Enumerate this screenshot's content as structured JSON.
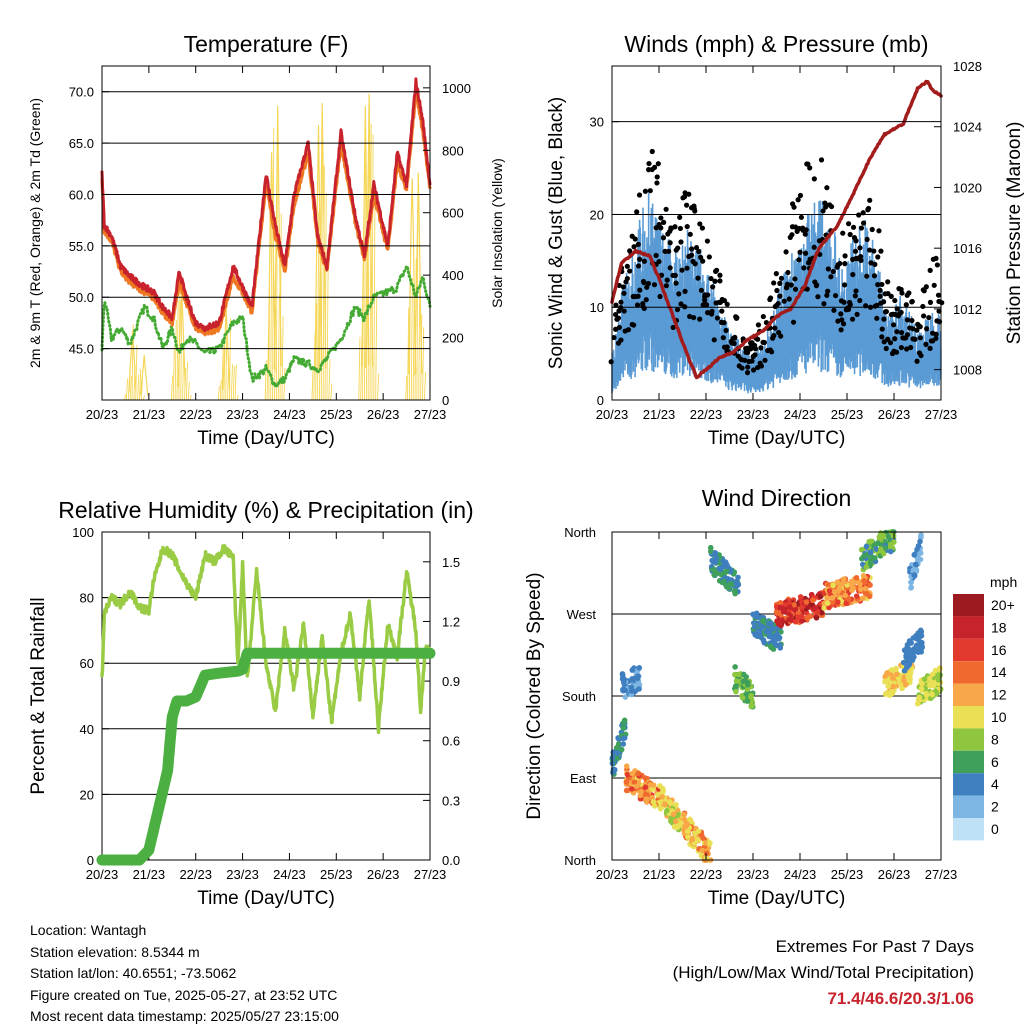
{
  "time_ticks": [
    "20/23",
    "21/23",
    "22/23",
    "23/23",
    "24/23",
    "25/23",
    "26/23",
    "27/23"
  ],
  "xlabel": "Time (Day/UTC)",
  "colors": {
    "temp_9m": "#c8232c",
    "temp_2m": "#ee7722",
    "dewpoint": "#44aa33",
    "solar": "#f5d656",
    "wind": "#5a9bd5",
    "gust": "#000000",
    "pressure": "#a31c1c",
    "rh": "#99cc44",
    "precip": "#4bb041",
    "extremes": "#c8232c"
  },
  "chart_data": [
    {
      "type": "line",
      "title": "Temperature (F)",
      "xlabel": "Time (Day/UTC)",
      "ylabel": "2m & 9m T (Red, Orange) & 2m Td (Green)",
      "y2label": "Solar Insolation (Yellow)",
      "ylim": [
        40.0,
        72.5
      ],
      "y2lim": [
        0,
        1070
      ],
      "yticks": [
        "45.0",
        "50.0",
        "55.0",
        "60.0",
        "65.0",
        "70.0"
      ],
      "y2ticks": [
        "0",
        "200",
        "400",
        "600",
        "800",
        "1000"
      ],
      "grid": true,
      "x_days": [
        0,
        0.05,
        0.2,
        0.4,
        0.6,
        0.9,
        1.1,
        1.3,
        1.5,
        1.65,
        1.8,
        2.0,
        2.2,
        2.5,
        2.8,
        3.0,
        3.2,
        3.5,
        3.7,
        3.9,
        4.1,
        4.4,
        4.6,
        4.8,
        5.1,
        5.4,
        5.6,
        5.8,
        6.1,
        6.3,
        6.5,
        6.7,
        6.85,
        7.0
      ],
      "series": [
        {
          "key": "t9m",
          "values": [
            62,
            57,
            56,
            53,
            52,
            51,
            50.5,
            49,
            48,
            52.5,
            50,
            47.5,
            47,
            47.5,
            53,
            51,
            49,
            62,
            57,
            53,
            60,
            65,
            56,
            53,
            66,
            58,
            54,
            61,
            55,
            64,
            61,
            71,
            67,
            61
          ]
        },
        {
          "key": "t2m",
          "values": [
            61.5,
            56.5,
            55.5,
            52.5,
            51.5,
            50.5,
            50,
            48.5,
            47.5,
            51.5,
            49.5,
            47,
            46.5,
            47,
            52,
            50.5,
            48.5,
            61,
            56,
            52.5,
            59,
            64,
            55.5,
            52.5,
            65,
            57.5,
            53.5,
            60,
            54.5,
            63,
            60.5,
            70,
            66,
            60.5
          ]
        },
        {
          "key": "td",
          "values": [
            45,
            50,
            46,
            47,
            45.5,
            49,
            48,
            45,
            47,
            44.5,
            46,
            45.5,
            44.5,
            45,
            47.5,
            48,
            42,
            43,
            41.5,
            42,
            44,
            43.5,
            43,
            44,
            46,
            49,
            48,
            50,
            50.5,
            51,
            53,
            50,
            52,
            49
          ]
        },
        {
          "key": "solar",
          "peaks": [
            {
              "at": 0.65,
              "v": 250
            },
            {
              "at": 0.9,
              "v": 150
            },
            {
              "at": 1.7,
              "v": 400
            },
            {
              "at": 2.65,
              "v": 300
            },
            {
              "at": 3.62,
              "v": 880
            },
            {
              "at": 3.75,
              "v": 950
            },
            {
              "at": 4.62,
              "v": 950
            },
            {
              "at": 4.7,
              "v": 1000
            },
            {
              "at": 5.62,
              "v": 1030
            },
            {
              "at": 5.7,
              "v": 1000
            },
            {
              "at": 6.62,
              "v": 780
            },
            {
              "at": 6.75,
              "v": 750
            }
          ]
        }
      ]
    },
    {
      "type": "line",
      "title": "Winds (mph) & Pressure (mb)",
      "xlabel": "Time (Day/UTC)",
      "ylabel": "Sonic Wind & Gust (Blue, Black)",
      "y2label": "Station Pressure (Maroon)",
      "ylim": [
        0,
        36
      ],
      "y2lim": [
        1006,
        1028
      ],
      "yticks": [
        "0",
        "10",
        "20",
        "30"
      ],
      "y2ticks": [
        "1008",
        "1012",
        "1016",
        "1020",
        "1024",
        "1028"
      ],
      "grid": true,
      "wind_env_x": [
        0,
        0.3,
        0.5,
        0.8,
        1.0,
        1.3,
        1.6,
        2.0,
        2.3,
        2.5,
        2.8,
        3.0,
        3.4,
        3.7,
        4.0,
        4.3,
        4.6,
        4.9,
        5.1,
        5.4,
        5.6,
        5.9,
        6.2,
        6.5,
        6.7,
        6.9,
        7.0
      ],
      "wind_env": [
        3,
        10,
        12,
        16,
        13,
        11,
        13,
        10,
        7,
        5,
        4,
        3,
        6,
        10,
        12,
        15,
        14,
        10,
        12,
        13,
        11,
        6,
        8,
        5,
        6,
        7,
        6
      ],
      "gust_env": [
        6,
        16,
        18,
        24,
        22,
        17,
        20,
        17,
        12,
        9,
        7,
        6,
        10,
        17,
        20,
        25,
        22,
        16,
        18,
        20,
        18,
        10,
        12,
        9,
        11,
        14,
        12
      ],
      "pressure_x": [
        0,
        0.2,
        0.5,
        0.8,
        1.0,
        1.3,
        1.6,
        1.8,
        2.0,
        2.3,
        2.6,
        2.9,
        3.2,
        3.5,
        3.8,
        4.1,
        4.4,
        4.8,
        5.2,
        5.5,
        5.8,
        6.2,
        6.5,
        6.7,
        6.8,
        7.0
      ],
      "pressure": [
        1012.5,
        1015,
        1015.8,
        1015.5,
        1014,
        1011.5,
        1009,
        1007.5,
        1008,
        1008.8,
        1009.2,
        1010,
        1010.5,
        1011.5,
        1012,
        1013.5,
        1016,
        1017.5,
        1020,
        1022,
        1023.5,
        1024.2,
        1026.5,
        1027,
        1026.5,
        1026
      ]
    },
    {
      "type": "line",
      "title": "Relative Humidity (%) & Precipitation (in)",
      "xlabel": "Time (Day/UTC)",
      "ylabel": "Percent & Total Rainfall",
      "ylim": [
        0,
        100
      ],
      "y2lim": [
        0,
        1.65
      ],
      "yticks": [
        "0",
        "20",
        "40",
        "60",
        "80",
        "100"
      ],
      "y2ticks": [
        "0.0",
        "0.3",
        "0.6",
        "0.9",
        "1.2",
        "1.5"
      ],
      "grid": true,
      "rh_x": [
        0,
        0.05,
        0.2,
        0.4,
        0.6,
        0.8,
        1.0,
        1.1,
        1.3,
        1.5,
        1.7,
        1.9,
        2.0,
        2.2,
        2.4,
        2.6,
        2.8,
        2.9,
        3.0,
        3.1,
        3.3,
        3.5,
        3.7,
        3.9,
        4.1,
        4.3,
        4.5,
        4.7,
        4.9,
        5.1,
        5.3,
        5.5,
        5.7,
        5.9,
        6.1,
        6.3,
        6.5,
        6.7,
        6.8,
        6.9,
        7.0
      ],
      "rh": [
        55,
        75,
        80,
        78,
        82,
        77,
        76,
        85,
        95,
        93,
        87,
        82,
        80,
        93,
        91,
        95,
        92,
        60,
        90,
        55,
        88,
        60,
        45,
        70,
        52,
        72,
        44,
        68,
        42,
        63,
        75,
        50,
        80,
        40,
        72,
        62,
        88,
        70,
        45,
        65,
        63
      ],
      "precip_x": [
        0,
        0.8,
        1.0,
        1.1,
        1.4,
        1.5,
        1.6,
        1.8,
        2.0,
        2.2,
        2.5,
        2.9,
        3.0,
        3.1,
        7.0
      ],
      "precip": [
        0,
        0,
        0.05,
        0.15,
        0.45,
        0.72,
        0.8,
        0.8,
        0.82,
        0.93,
        0.94,
        0.95,
        0.96,
        1.04,
        1.04
      ]
    },
    {
      "type": "scatter",
      "title": "Wind Direction",
      "xlabel": "Time (Day/UTC)",
      "ylabel": "Direction (Colored By Speed)",
      "ylim": [
        0,
        360
      ],
      "yticks": [
        "North",
        "East",
        "South",
        "West",
        "North"
      ],
      "grid": true,
      "legend": {
        "title": "mph",
        "labels": [
          "20+",
          "18",
          "16",
          "14",
          "12",
          "10",
          "8",
          "6",
          "4",
          "2",
          "0"
        ],
        "colors": [
          "#9b1b20",
          "#c7232a",
          "#e33a2e",
          "#f06a30",
          "#f8a848",
          "#e9e056",
          "#8ec63f",
          "#3ea05a",
          "#3f7fbf",
          "#7eb6e3",
          "#bfe1f5"
        ]
      },
      "clusters": [
        {
          "x0": 0,
          "x1": 0.3,
          "d0": 100,
          "d1": 150,
          "s": [
            3,
            6
          ]
        },
        {
          "x0": 0.2,
          "x1": 0.6,
          "d0": 190,
          "d1": 200,
          "s": [
            2,
            5
          ]
        },
        {
          "x0": 0.3,
          "x1": 1.0,
          "d0": 90,
          "d1": 70,
          "s": [
            10,
            16
          ]
        },
        {
          "x0": 1.0,
          "x1": 1.5,
          "d0": 70,
          "d1": 40,
          "s": [
            8,
            12
          ]
        },
        {
          "x0": 1.5,
          "x1": 2.1,
          "d0": 40,
          "d1": 5,
          "s": [
            9,
            14
          ]
        },
        {
          "x0": 2.1,
          "x1": 2.7,
          "d0": 330,
          "d1": 300,
          "s": [
            3,
            7
          ]
        },
        {
          "x0": 2.6,
          "x1": 3.0,
          "d0": 200,
          "d1": 180,
          "s": [
            5,
            9
          ]
        },
        {
          "x0": 3.0,
          "x1": 3.6,
          "d0": 260,
          "d1": 240,
          "s": [
            3,
            6
          ]
        },
        {
          "x0": 3.5,
          "x1": 4.5,
          "d0": 270,
          "d1": 280,
          "s": [
            14,
            20
          ]
        },
        {
          "x0": 4.5,
          "x1": 5.5,
          "d0": 290,
          "d1": 300,
          "s": [
            10,
            16
          ]
        },
        {
          "x0": 5.3,
          "x1": 6.0,
          "d0": 330,
          "d1": 355,
          "s": [
            4,
            9
          ]
        },
        {
          "x0": 5.8,
          "x1": 6.4,
          "d0": 190,
          "d1": 210,
          "s": [
            9,
            12
          ]
        },
        {
          "x0": 6.2,
          "x1": 6.6,
          "d0": 220,
          "d1": 240,
          "s": [
            3,
            5
          ]
        },
        {
          "x0": 6.5,
          "x1": 7.0,
          "d0": 180,
          "d1": 200,
          "s": [
            7,
            11
          ]
        },
        {
          "x0": 6.3,
          "x1": 6.6,
          "d0": 300,
          "d1": 350,
          "s": [
            1,
            4
          ]
        }
      ]
    }
  ],
  "info": {
    "location": "Location: Wantagh",
    "elevation": "Station elevation: 8.5344 m",
    "latlon": "Station lat/lon: 40.6551; -73.5062",
    "created": "Figure created on Tue, 2025-05-27, at 23:52 UTC",
    "recent": "Most recent data timestamp: 2025/05/27 23:15:00"
  },
  "extremes": {
    "title": "Extremes For Past 7 Days",
    "subtitle": "(High/Low/Max Wind/Total Precipitation)",
    "values": "71.4/46.6/20.3/1.06"
  }
}
